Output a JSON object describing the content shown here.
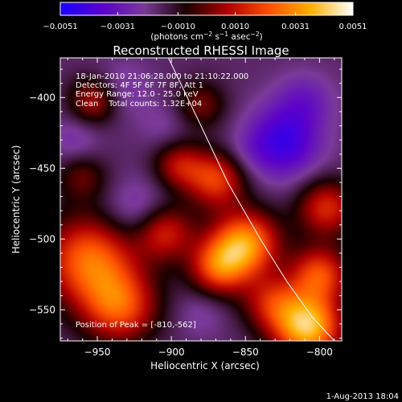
{
  "chart_data": {
    "type": "heatmap",
    "title": "Reconstructed RHESSI Image",
    "xlabel": "Heliocentric X (arcsec)",
    "ylabel": "Heliocentric Y (arcsec)",
    "xlim": [
      -975,
      -785
    ],
    "ylim": [
      -572,
      -372
    ],
    "x_ticks": [
      -950,
      -900,
      -850,
      -800
    ],
    "x_tick_labels": [
      "−950",
      "−900",
      "−850",
      "−800"
    ],
    "y_ticks": [
      -400,
      -450,
      -500,
      -550
    ],
    "y_tick_labels": [
      "−400",
      "−450",
      "−500",
      "−550"
    ],
    "annotations": [
      "18-Jan-2010 21:06:28.000 to 21:10:22.000",
      "Detectors: 4F 5F 6F 7F 8F, Att 1",
      "Energy Range: 12.0 - 25.0 keV",
      "Clean    Total counts: 1.32E+04"
    ],
    "peak_label": "Position of Peak = [-810,-562]",
    "peak": [
      -810,
      -562
    ],
    "limb_curve": {
      "x": [
        -902,
        -880,
        -862,
        -840,
        -822,
        -805,
        -790
      ],
      "y": [
        -372,
        -420,
        -460,
        -500,
        -530,
        -555,
        -572
      ]
    },
    "colorbar": {
      "min": -0.0051,
      "max": 0.0051,
      "ticks": [
        -0.0051,
        -0.0031,
        -0.001,
        0.001,
        0.0031,
        0.0051
      ],
      "tick_labels": [
        "−0.0051",
        "−0.0031",
        "−0.0010",
        "0.0010",
        "0.0031",
        "0.0051"
      ],
      "colors": [
        "#1a00ff",
        "#5a00cc",
        "#7a3a99",
        "#1a0000",
        "#b00000",
        "#ff5000",
        "#ffb000",
        "#ffffff"
      ]
    },
    "blobs": [
      {
        "x": -808,
        "y": -562,
        "v": 0.0051,
        "s": 16
      },
      {
        "x": -850,
        "y": -503,
        "v": 0.0042,
        "s": 16
      },
      {
        "x": -868,
        "y": -520,
        "v": 0.003,
        "s": 14
      },
      {
        "x": -955,
        "y": -515,
        "v": 0.0036,
        "s": 22
      },
      {
        "x": -935,
        "y": -548,
        "v": 0.003,
        "s": 18
      },
      {
        "x": -905,
        "y": -495,
        "v": 0.0025,
        "s": 14
      },
      {
        "x": -870,
        "y": -458,
        "v": 0.0028,
        "s": 14
      },
      {
        "x": -895,
        "y": -448,
        "v": 0.0018,
        "s": 12
      },
      {
        "x": -952,
        "y": -402,
        "v": 0.002,
        "s": 12
      },
      {
        "x": -880,
        "y": -405,
        "v": 0.0012,
        "s": 12
      },
      {
        "x": -960,
        "y": -456,
        "v": 0.001,
        "s": 12
      },
      {
        "x": -795,
        "y": -478,
        "v": 0.0025,
        "s": 14
      },
      {
        "x": -800,
        "y": -525,
        "v": 0.003,
        "s": 14
      },
      {
        "x": -832,
        "y": -545,
        "v": 0.002,
        "s": 14
      },
      {
        "x": -825,
        "y": -432,
        "v": -0.0032,
        "s": 18
      },
      {
        "x": -810,
        "y": -402,
        "v": -0.0018,
        "s": 14
      },
      {
        "x": -922,
        "y": -482,
        "v": -0.002,
        "s": 16
      },
      {
        "x": -935,
        "y": -395,
        "v": -0.0016,
        "s": 14
      },
      {
        "x": -905,
        "y": -420,
        "v": -0.0012,
        "s": 12
      },
      {
        "x": -880,
        "y": -552,
        "v": -0.0013,
        "s": 12
      },
      {
        "x": -965,
        "y": -430,
        "v": -0.0015,
        "s": 12
      },
      {
        "x": -850,
        "y": -440,
        "v": -0.001,
        "s": 10
      }
    ]
  },
  "footer": {
    "timestamp": "1-Aug-2013 18:04"
  }
}
